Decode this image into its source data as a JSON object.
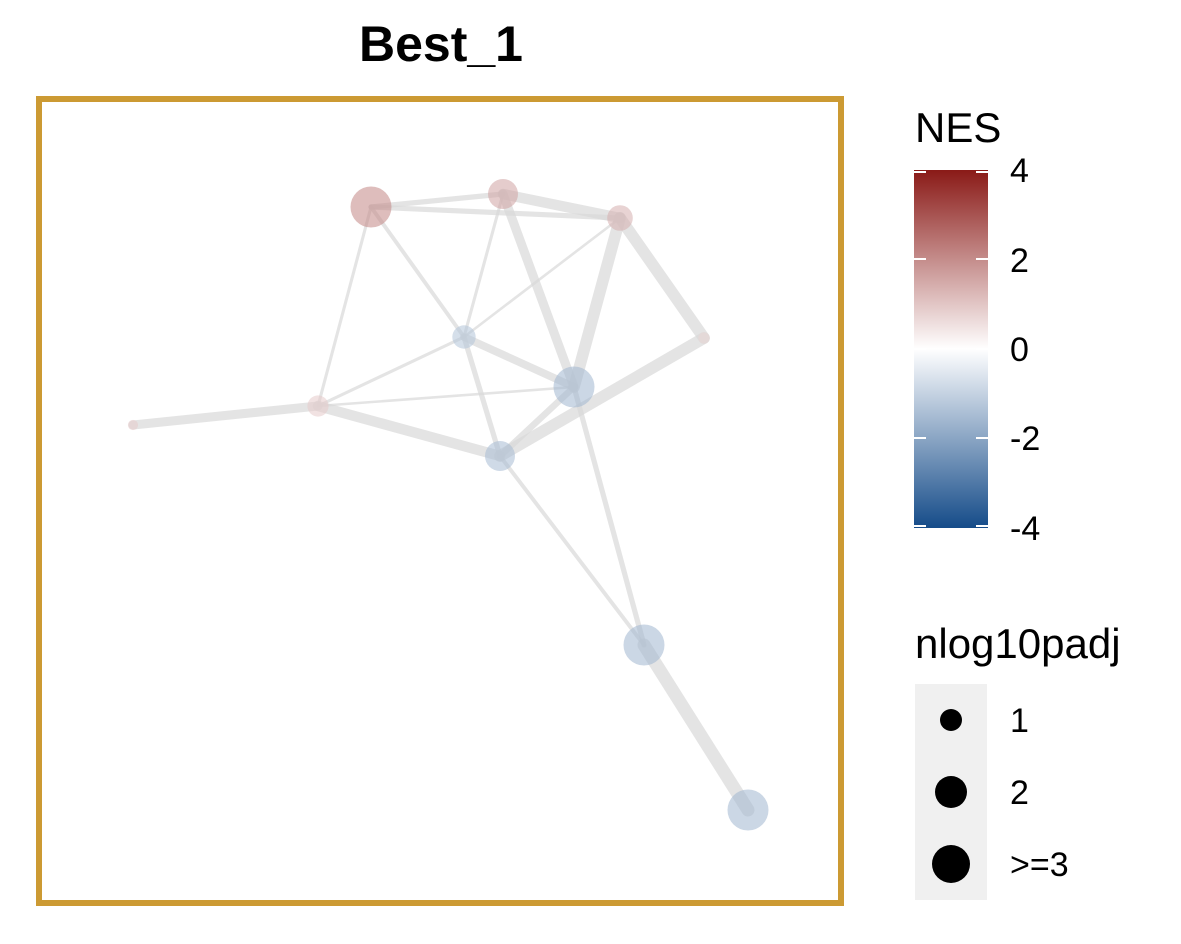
{
  "title": "Best_1",
  "frame_color": "#CC9A33",
  "edge_color": "#D9D9D9",
  "nodes": [
    {
      "id": "n1",
      "nes": 2.1,
      "nlog10padj": 3
    },
    {
      "id": "n2",
      "nes": 1.6,
      "nlog10padj": 2
    },
    {
      "id": "n3",
      "nes": 1.4,
      "nlog10padj": 1.6
    },
    {
      "id": "n4",
      "nes": -1.3,
      "nlog10padj": 1.4
    },
    {
      "id": "n5",
      "nes": -1.6,
      "nlog10padj": 3
    },
    {
      "id": "n6",
      "nes": 0.9,
      "nlog10padj": 1.2
    },
    {
      "id": "n7",
      "nes": -1.5,
      "nlog10padj": 2
    },
    {
      "id": "n8",
      "nes": 0.7,
      "nlog10padj": 0.3
    },
    {
      "id": "n9",
      "nes": 0.9,
      "nlog10padj": 0.2
    },
    {
      "id": "n10",
      "nes": -1.6,
      "nlog10padj": 3
    },
    {
      "id": "n11",
      "nes": -1.6,
      "nlog10padj": 3
    }
  ],
  "edges": [
    {
      "from": "n1",
      "to": "n2",
      "weight": 2
    },
    {
      "from": "n1",
      "to": "n3",
      "weight": 2
    },
    {
      "from": "n2",
      "to": "n3",
      "weight": 4
    },
    {
      "from": "n1",
      "to": "n4",
      "weight": 1.5
    },
    {
      "from": "n1",
      "to": "n6",
      "weight": 1.2
    },
    {
      "from": "n2",
      "to": "n4",
      "weight": 1.2
    },
    {
      "from": "n2",
      "to": "n5",
      "weight": 3.5
    },
    {
      "from": "n3",
      "to": "n4",
      "weight": 1
    },
    {
      "from": "n3",
      "to": "n5",
      "weight": 4.5
    },
    {
      "from": "n3",
      "to": "n8",
      "weight": 4.5
    },
    {
      "from": "n4",
      "to": "n5",
      "weight": 3
    },
    {
      "from": "n4",
      "to": "n6",
      "weight": 1.2
    },
    {
      "from": "n4",
      "to": "n7",
      "weight": 2
    },
    {
      "from": "n5",
      "to": "n6",
      "weight": 1
    },
    {
      "from": "n5",
      "to": "n7",
      "weight": 2.5
    },
    {
      "from": "n6",
      "to": "n7",
      "weight": 4
    },
    {
      "from": "n6",
      "to": "n9",
      "weight": 3.5
    },
    {
      "from": "n7",
      "to": "n8",
      "weight": 4.5
    },
    {
      "from": "n5",
      "to": "n10",
      "weight": 2
    },
    {
      "from": "n7",
      "to": "n10",
      "weight": 1.5
    },
    {
      "from": "n10",
      "to": "n11",
      "weight": 5
    }
  ],
  "legend": {
    "color_title": "NES",
    "color_ticks": [
      "4",
      "2",
      "0",
      "-2",
      "-4"
    ],
    "color_scale": {
      "min": -4,
      "max": 4,
      "low": "#154C89",
      "mid": "#FFFFFF",
      "high": "#8A1A17"
    },
    "size_title": "nlog10padj",
    "size_labels": [
      "1",
      "2",
      ">=3"
    ]
  }
}
